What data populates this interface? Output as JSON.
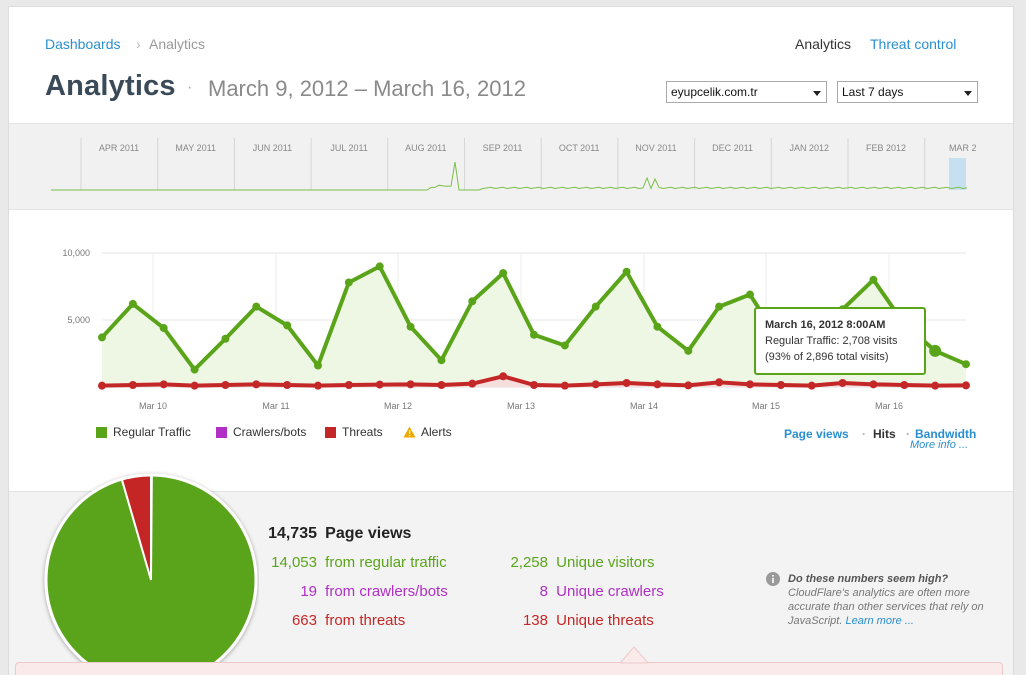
{
  "breadcrumb": {
    "parent": "Dashboards",
    "sep": "›",
    "current": "Analytics"
  },
  "topnav": {
    "analytics": "Analytics",
    "threat_control": "Threat control"
  },
  "header": {
    "title": "Analytics",
    "separator": "·",
    "date_range": "March 9, 2012 – March 16, 2012"
  },
  "controls": {
    "site": "eyupcelik.com.tr",
    "period": "Last 7 days"
  },
  "overview": {
    "months": [
      "APR 2011",
      "MAY 2011",
      "JUN 2011",
      "JUL 2011",
      "AUG 2011",
      "SEP 2011",
      "OCT 2011",
      "NOV 2011",
      "DEC 2011",
      "JAN 2012",
      "FEB 2012",
      "MAR 2"
    ]
  },
  "chart_data": {
    "type": "line",
    "ylim": [
      0,
      10000
    ],
    "y_ticks": [
      "10,000",
      "5,000"
    ],
    "x_ticks": [
      "Mar 10",
      "Mar 11",
      "Mar 12",
      "Mar 13",
      "Mar 14",
      "Mar 15",
      "Mar 16"
    ],
    "series": [
      {
        "name": "Regular Traffic",
        "color": "#5aa41a",
        "values": [
          3700,
          6200,
          4400,
          1300,
          3600,
          6000,
          4600,
          1600,
          7800,
          9000,
          4500,
          2000,
          6400,
          8500,
          3900,
          3100,
          6000,
          8600,
          4500,
          2700,
          6000,
          6900,
          3300,
          4000,
          5800,
          8000,
          4700,
          2700,
          1700
        ]
      },
      {
        "name": "Threats",
        "color": "#c42727",
        "values": [
          100,
          150,
          200,
          100,
          150,
          200,
          150,
          100,
          150,
          180,
          200,
          150,
          250,
          800,
          150,
          100,
          200,
          300,
          200,
          120,
          350,
          200,
          150,
          100,
          300,
          200,
          150,
          100,
          120
        ]
      }
    ],
    "legend": [
      "Regular Traffic",
      "Crawlers/bots",
      "Threats",
      "Alerts"
    ]
  },
  "tooltip": {
    "date": "March 16, 2012 8:00AM",
    "line1": "Regular Traffic: 2,708 visits",
    "line2": "(93% of 2,896 total visits)"
  },
  "legend": {
    "regular": "Regular Traffic",
    "crawlers": "Crawlers/bots",
    "threats": "Threats",
    "alerts": "Alerts",
    "colors": {
      "regular": "#5aa41a",
      "crawlers": "#b12fc7",
      "threats": "#c42727",
      "alerts": "#f0a800"
    }
  },
  "view_tabs": {
    "page_views": "Page views",
    "sep": "·",
    "hits": "Hits",
    "bandwidth": "Bandwidth",
    "more_info": "More info ..."
  },
  "stats": {
    "total_num": "14,735",
    "total_label": "Page views",
    "regular_num": "14,053",
    "regular_label": "from regular traffic",
    "crawlers_num": "19",
    "crawlers_label": "from crawlers/bots",
    "threats_num": "663",
    "threats_label": "from threats",
    "uv_num": "2,258",
    "uv_label": "Unique visitors",
    "uc_num": "8",
    "uc_label": "Unique crawlers",
    "ut_num": "138",
    "ut_label": "Unique threats"
  },
  "pie_data": {
    "regular": 14053,
    "crawlers": 19,
    "threats": 663
  },
  "note": {
    "question": "Do these numbers seem high?",
    "body": "CloudFlare's analytics are often more accurate than other services that rely on JavaScript.",
    "link": "Learn more ..."
  }
}
